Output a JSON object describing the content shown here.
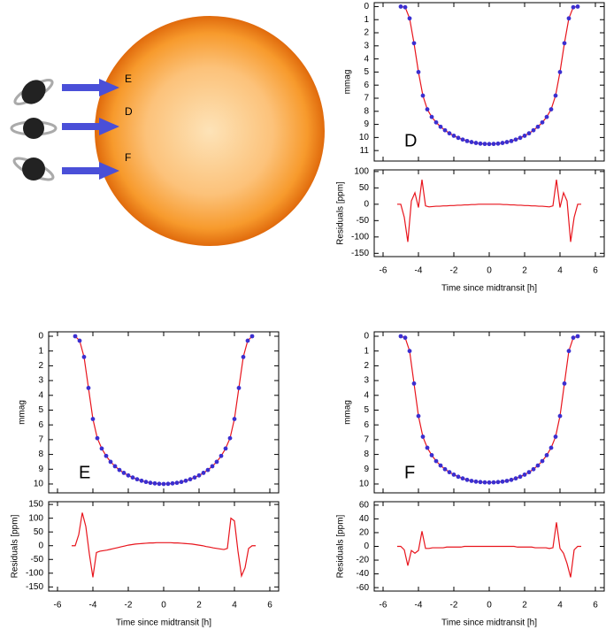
{
  "diagram": {
    "labels": [
      "E",
      "D",
      "F"
    ]
  },
  "chart_data": [
    {
      "type": "line",
      "label": "D",
      "ylabel": "mmag",
      "y_inverted": true,
      "xlim": [
        -6.5,
        6.5
      ],
      "ylim": [
        -0.3,
        11.8
      ],
      "yticks": [
        0,
        1,
        2,
        3,
        4,
        5,
        6,
        7,
        8,
        9,
        10,
        11
      ],
      "x": [
        -5,
        -4.75,
        -4.5,
        -4.25,
        -4,
        -3.75,
        -3.5,
        -3.25,
        -3,
        -2.75,
        -2.5,
        -2.25,
        -2,
        -1.75,
        -1.5,
        -1.25,
        -1,
        -0.75,
        -0.5,
        -0.25,
        0,
        0.25,
        0.5,
        0.75,
        1,
        1.25,
        1.5,
        1.75,
        2,
        2.25,
        2.5,
        2.75,
        3,
        3.25,
        3.5,
        3.75,
        4,
        4.25,
        4.5,
        4.75,
        5
      ],
      "series": [
        {
          "color": "#e8141c",
          "marker_color": "#3b2fd0",
          "values": [
            0,
            0.05,
            0.9,
            2.8,
            5.0,
            6.8,
            7.85,
            8.43,
            8.85,
            9.18,
            9.45,
            9.68,
            9.87,
            10.03,
            10.16,
            10.27,
            10.35,
            10.42,
            10.47,
            10.49,
            10.5,
            10.49,
            10.47,
            10.42,
            10.35,
            10.27,
            10.16,
            10.03,
            9.87,
            9.68,
            9.45,
            9.18,
            8.85,
            8.43,
            7.85,
            6.8,
            5.0,
            2.8,
            0.9,
            0.05,
            0
          ]
        }
      ]
    },
    {
      "type": "line",
      "ylabel": "Residuals [ppm]",
      "xlabel": "Time since midtransit [h]",
      "xlim": [
        -6.5,
        6.5
      ],
      "ylim": [
        -160,
        105
      ],
      "xticks": [
        -6,
        -4,
        -2,
        0,
        2,
        4,
        6
      ],
      "yticks": [
        -150,
        -100,
        -50,
        0,
        50,
        100
      ],
      "x": [
        -5.2,
        -5,
        -4.8,
        -4.6,
        -4.4,
        -4.2,
        -4,
        -3.8,
        -3.6,
        -3.4,
        -3.2,
        -3,
        -2.8,
        -2.6,
        -2.4,
        -2.2,
        -2,
        -1.8,
        -1.6,
        -1.4,
        -1.2,
        -1,
        -0.8,
        -0.6,
        -0.4,
        -0.2,
        0,
        0.2,
        0.4,
        0.6,
        0.8,
        1,
        1.2,
        1.4,
        1.6,
        1.8,
        2,
        2.2,
        2.4,
        2.6,
        2.8,
        3,
        3.2,
        3.4,
        3.6,
        3.8,
        4,
        4.2,
        4.4,
        4.6,
        4.8,
        5,
        5.2
      ],
      "series": [
        {
          "color": "#e8141c",
          "values": [
            0,
            0,
            -40,
            -115,
            10,
            35,
            -10,
            75,
            -5,
            -8,
            -7,
            -6,
            -6,
            -5,
            -5,
            -4,
            -4,
            -3,
            -3,
            -2,
            -2,
            -1,
            -1,
            0,
            0,
            0,
            0,
            0,
            0,
            0,
            -1,
            -1,
            -2,
            -2,
            -3,
            -3,
            -4,
            -4,
            -5,
            -5,
            -6,
            -6,
            -7,
            -8,
            -5,
            75,
            -10,
            35,
            10,
            -115,
            -40,
            0,
            0
          ]
        }
      ]
    },
    {
      "type": "line",
      "label": "E",
      "ylabel": "mmag",
      "y_inverted": true,
      "xlim": [
        -6.5,
        6.5
      ],
      "ylim": [
        -0.3,
        10.6
      ],
      "yticks": [
        0,
        1,
        2,
        3,
        4,
        5,
        6,
        7,
        8,
        9,
        10
      ],
      "x": [
        -5,
        -4.75,
        -4.5,
        -4.25,
        -4,
        -3.75,
        -3.5,
        -3.25,
        -3,
        -2.75,
        -2.5,
        -2.25,
        -2,
        -1.75,
        -1.5,
        -1.25,
        -1,
        -0.75,
        -0.5,
        -0.25,
        0,
        0.25,
        0.5,
        0.75,
        1,
        1.25,
        1.5,
        1.75,
        2,
        2.25,
        2.5,
        2.75,
        3,
        3.25,
        3.5,
        3.75,
        4,
        4.25,
        4.5,
        4.75,
        5
      ],
      "series": [
        {
          "color": "#e8141c",
          "marker_color": "#3b2fd0",
          "values": [
            0,
            0.3,
            1.4,
            3.5,
            5.6,
            6.9,
            7.6,
            8.1,
            8.5,
            8.8,
            9.05,
            9.25,
            9.42,
            9.56,
            9.68,
            9.78,
            9.86,
            9.92,
            9.96,
            9.99,
            10.0,
            9.99,
            9.96,
            9.92,
            9.86,
            9.78,
            9.68,
            9.56,
            9.42,
            9.25,
            9.05,
            8.8,
            8.5,
            8.1,
            7.6,
            6.9,
            5.6,
            3.5,
            1.4,
            0.3,
            0
          ]
        }
      ]
    },
    {
      "type": "line",
      "ylabel": "Residuals [ppm]",
      "xlabel": "Time since midtransit [h]",
      "xlim": [
        -6.5,
        6.5
      ],
      "ylim": [
        -165,
        160
      ],
      "xticks": [
        -6,
        -4,
        -2,
        0,
        2,
        4,
        6
      ],
      "yticks": [
        -150,
        -100,
        -50,
        0,
        50,
        100,
        150
      ],
      "x": [
        -5.2,
        -5,
        -4.8,
        -4.6,
        -4.4,
        -4.2,
        -4,
        -3.8,
        -3.6,
        -3.4,
        -3.2,
        -3,
        -2.8,
        -2.6,
        -2.4,
        -2.2,
        -2,
        -1.8,
        -1.6,
        -1.4,
        -1.2,
        -1,
        -0.8,
        -0.6,
        -0.4,
        -0.2,
        0,
        0.2,
        0.4,
        0.6,
        0.8,
        1,
        1.2,
        1.4,
        1.6,
        1.8,
        2,
        2.2,
        2.4,
        2.6,
        2.8,
        3,
        3.2,
        3.4,
        3.6,
        3.8,
        4,
        4.2,
        4.4,
        4.6,
        4.8,
        5,
        5.2
      ],
      "series": [
        {
          "color": "#e8141c",
          "values": [
            0,
            0,
            40,
            120,
            70,
            -30,
            -115,
            -25,
            -20,
            -18,
            -16,
            -13,
            -10,
            -7,
            -4,
            -1,
            2,
            4,
            6,
            7,
            8,
            9,
            10,
            10,
            11,
            11,
            11,
            11,
            11,
            10,
            10,
            9,
            8,
            7,
            6,
            4,
            2,
            0,
            -3,
            -5,
            -8,
            -10,
            -12,
            -14,
            -10,
            100,
            90,
            -20,
            -110,
            -80,
            -10,
            0,
            0
          ]
        }
      ]
    },
    {
      "type": "line",
      "label": "F",
      "ylabel": "mmag",
      "y_inverted": true,
      "xlim": [
        -6.5,
        6.5
      ],
      "ylim": [
        -0.3,
        10.6
      ],
      "yticks": [
        0,
        1,
        2,
        3,
        4,
        5,
        6,
        7,
        8,
        9,
        10
      ],
      "x": [
        -5,
        -4.75,
        -4.5,
        -4.25,
        -4,
        -3.75,
        -3.5,
        -3.25,
        -3,
        -2.75,
        -2.5,
        -2.25,
        -2,
        -1.75,
        -1.5,
        -1.25,
        -1,
        -0.75,
        -0.5,
        -0.25,
        0,
        0.25,
        0.5,
        0.75,
        1,
        1.25,
        1.5,
        1.75,
        2,
        2.25,
        2.5,
        2.75,
        3,
        3.25,
        3.5,
        3.75,
        4,
        4.25,
        4.5,
        4.75,
        5
      ],
      "series": [
        {
          "color": "#e8141c",
          "marker_color": "#3b2fd0",
          "values": [
            0,
            0.1,
            1.0,
            3.2,
            5.4,
            6.8,
            7.55,
            8.05,
            8.45,
            8.75,
            9.0,
            9.2,
            9.37,
            9.51,
            9.62,
            9.72,
            9.79,
            9.84,
            9.87,
            9.89,
            9.9,
            9.89,
            9.87,
            9.84,
            9.79,
            9.72,
            9.62,
            9.51,
            9.37,
            9.2,
            9.0,
            8.75,
            8.45,
            8.05,
            7.55,
            6.8,
            5.4,
            3.2,
            1.0,
            0.1,
            0
          ]
        }
      ]
    },
    {
      "type": "line",
      "ylabel": "Residuals [ppm]",
      "xlabel": "Time since midtransit [h]",
      "xlim": [
        -6.5,
        6.5
      ],
      "ylim": [
        -65,
        65
      ],
      "xticks": [
        -6,
        -4,
        -2,
        0,
        2,
        4,
        6
      ],
      "yticks": [
        -60,
        -40,
        -20,
        0,
        20,
        40,
        60
      ],
      "x": [
        -5.2,
        -5,
        -4.8,
        -4.6,
        -4.4,
        -4.2,
        -4,
        -3.8,
        -3.6,
        -3.4,
        -3.2,
        -3,
        -2.8,
        -2.6,
        -2.4,
        -2.2,
        -2,
        -1.8,
        -1.6,
        -1.4,
        -1.2,
        -1,
        -0.8,
        -0.6,
        -0.4,
        -0.2,
        0,
        0.2,
        0.4,
        0.6,
        0.8,
        1,
        1.2,
        1.4,
        1.6,
        1.8,
        2,
        2.2,
        2.4,
        2.6,
        2.8,
        3,
        3.2,
        3.4,
        3.6,
        3.8,
        4,
        4.2,
        4.4,
        4.6,
        4.8,
        5,
        5.2
      ],
      "series": [
        {
          "color": "#e8141c",
          "values": [
            0,
            0,
            -5,
            -28,
            -6,
            -10,
            -6,
            22,
            -3,
            -3,
            -2,
            -2,
            -2,
            -2,
            -1,
            -1,
            -1,
            -1,
            -1,
            0,
            0,
            0,
            0,
            0,
            0,
            0,
            0,
            0,
            0,
            0,
            0,
            0,
            0,
            0,
            -1,
            -1,
            -1,
            -1,
            -1,
            -2,
            -2,
            -2,
            -2,
            -3,
            -2,
            35,
            -3,
            -10,
            -25,
            -45,
            -5,
            0,
            0
          ]
        }
      ]
    }
  ]
}
